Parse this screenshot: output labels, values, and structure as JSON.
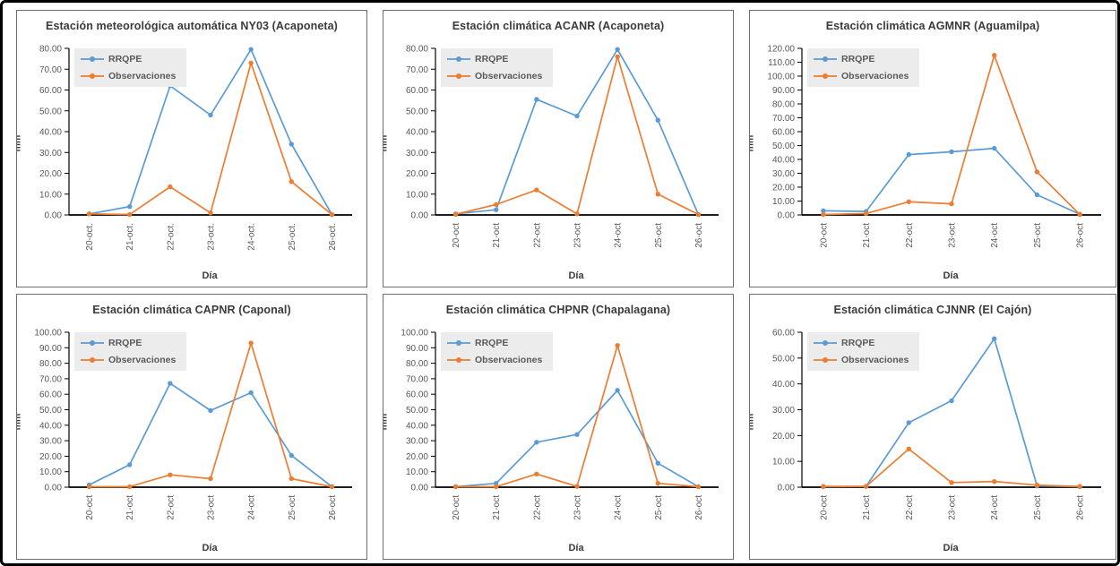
{
  "frame": {
    "background": "#ffffff",
    "outer_border_color": "#000000",
    "chart_border_color": "#6e6e6e"
  },
  "colors": {
    "rrqpe_series": "#5B9BD5",
    "observaciones_series": "#ED7D31",
    "title_text": "#3b3b3b",
    "tick_text": "#595959",
    "axis_line": "#000000",
    "legend_background": "#ececec"
  },
  "chart_data": [
    {
      "type": "line",
      "title": "Estación meteorológica automática NY03 (Acaponeta)",
      "xlabel": "Día",
      "ylabel": "mm",
      "ylim": [
        0,
        80
      ],
      "ytick_step": 10,
      "grid": false,
      "legend_position": "top-left",
      "categories": [
        "20-oct.",
        "21-oct.",
        "22-oct.",
        "23-oct.",
        "24-oct.",
        "25-oct.",
        "26-oct."
      ],
      "series": [
        {
          "name": "RRQPE",
          "color": "#5B9BD5",
          "values": [
            0.5,
            4,
            62,
            48,
            79.5,
            34,
            0.2
          ]
        },
        {
          "name": "Observaciones",
          "color": "#ED7D31",
          "values": [
            0.5,
            0.2,
            13.5,
            1,
            73,
            16,
            0.2
          ]
        }
      ]
    },
    {
      "type": "line",
      "title": "Estación climática ACANR (Acaponeta)",
      "xlabel": "Día",
      "ylabel": "mm",
      "ylim": [
        0,
        80
      ],
      "ytick_step": 10,
      "grid": false,
      "legend_position": "top-left",
      "categories": [
        "20-oct",
        "21-oct",
        "22-oct",
        "23-oct",
        "24-oct",
        "25-oct",
        "26-oct"
      ],
      "series": [
        {
          "name": "RRQPE",
          "color": "#5B9BD5",
          "values": [
            0.5,
            2.5,
            55.5,
            47.5,
            79.5,
            45.5,
            0.2
          ]
        },
        {
          "name": "Observaciones",
          "color": "#ED7D31",
          "values": [
            0.3,
            5,
            12,
            0.5,
            76,
            10,
            0.2
          ]
        }
      ]
    },
    {
      "type": "line",
      "title": "Estación climática AGMNR (Aguamilpa)",
      "xlabel": "Día",
      "ylabel": "mm",
      "ylim": [
        0,
        120
      ],
      "ytick_step": 10,
      "grid": false,
      "legend_position": "top-left",
      "categories": [
        "20-oct",
        "21-oct",
        "22-oct",
        "23-oct",
        "24-oct",
        "25-oct",
        "26-oct"
      ],
      "series": [
        {
          "name": "RRQPE",
          "color": "#5B9BD5",
          "values": [
            3,
            2.5,
            43.5,
            45.5,
            48,
            14.5,
            0.5
          ]
        },
        {
          "name": "Observaciones",
          "color": "#ED7D31",
          "values": [
            0.3,
            1,
            9.5,
            8,
            115,
            31,
            0.3
          ]
        }
      ]
    },
    {
      "type": "line",
      "title": "Estación climática CAPNR (Caponal)",
      "xlabel": "Día",
      "ylabel": "mm",
      "ylim": [
        0,
        100
      ],
      "ytick_step": 10,
      "grid": false,
      "legend_position": "top-left",
      "categories": [
        "20-oct",
        "21-oct",
        "22-oct",
        "23-oct",
        "24-oct",
        "25-oct",
        "26-oct"
      ],
      "series": [
        {
          "name": "RRQPE",
          "color": "#5B9BD5",
          "values": [
            1.5,
            14.5,
            67,
            49.5,
            61,
            20.5,
            0.3
          ]
        },
        {
          "name": "Observaciones",
          "color": "#ED7D31",
          "values": [
            0.3,
            0.3,
            8,
            5.5,
            93,
            5.5,
            0.3
          ]
        }
      ]
    },
    {
      "type": "line",
      "title": "Estación climática CHPNR (Chapalagana)",
      "xlabel": "Día",
      "ylabel": "mm",
      "ylim": [
        0,
        100
      ],
      "ytick_step": 10,
      "grid": false,
      "legend_position": "top-left",
      "categories": [
        "20-oct",
        "21-oct",
        "22-oct",
        "23-oct",
        "24-oct",
        "25-oct",
        "26-oct"
      ],
      "series": [
        {
          "name": "RRQPE",
          "color": "#5B9BD5",
          "values": [
            0.3,
            2.5,
            29,
            34,
            62.5,
            15.5,
            0.3
          ]
        },
        {
          "name": "Observaciones",
          "color": "#ED7D31",
          "values": [
            0.3,
            0.3,
            8.5,
            0.5,
            91.5,
            2.5,
            0.3
          ]
        }
      ]
    },
    {
      "type": "line",
      "title": "Estación climática CJNNR (El Cajón)",
      "xlabel": "Día",
      "ylabel": "mm",
      "ylim": [
        0,
        60
      ],
      "ytick_step": 10,
      "grid": false,
      "legend_position": "top-left",
      "categories": [
        "20-oct",
        "21-oct",
        "22-oct",
        "23-oct",
        "24-oct",
        "25-oct",
        "26-oct"
      ],
      "series": [
        {
          "name": "RRQPE",
          "color": "#5B9BD5",
          "values": [
            0.2,
            0.3,
            25,
            33.5,
            57.5,
            0.5,
            0.2
          ]
        },
        {
          "name": "Observaciones",
          "color": "#ED7D31",
          "values": [
            0.3,
            0.3,
            14.8,
            1.8,
            2.2,
            0.8,
            0.3
          ]
        }
      ]
    }
  ]
}
